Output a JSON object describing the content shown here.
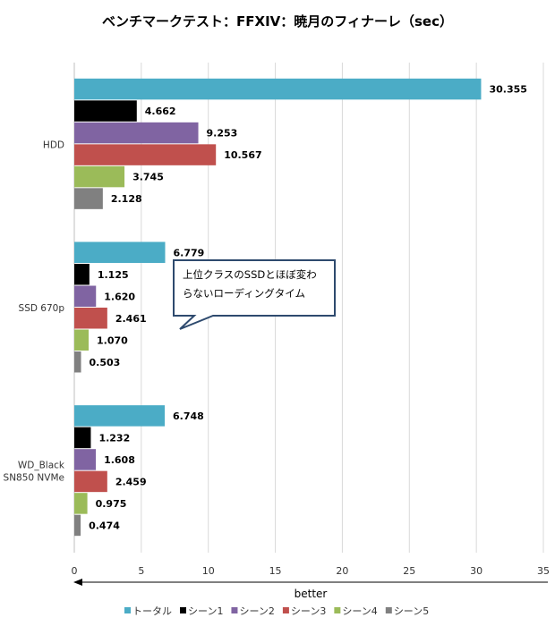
{
  "chart_data": {
    "type": "bar",
    "orientation": "horizontal",
    "title": "ベンチマークテスト：FFXIV：暁月のフィナーレ（sec）",
    "xlabel": "better",
    "xlim": [
      0,
      35
    ],
    "xticks": [
      0,
      5,
      10,
      15,
      20,
      25,
      30,
      35
    ],
    "grid": "vertical",
    "legend_position": "bottom",
    "categories": [
      "HDD",
      "SSD 670p",
      "WD_Black SN850 NVMe"
    ],
    "series": [
      {
        "name": "トータル",
        "color": "#4bacc6",
        "values": [
          30.355,
          6.779,
          6.748
        ]
      },
      {
        "name": "シーン1",
        "color": "#000000",
        "values": [
          4.662,
          1.125,
          1.232
        ]
      },
      {
        "name": "シーン2",
        "color": "#8064a2",
        "values": [
          9.253,
          1.62,
          1.608
        ]
      },
      {
        "name": "シーン3",
        "color": "#c0504d",
        "values": [
          10.567,
          2.461,
          2.459
        ]
      },
      {
        "name": "シーン4",
        "color": "#9bbb59",
        "values": [
          3.745,
          1.07,
          0.975
        ]
      },
      {
        "name": "シーン5",
        "color": "#808080",
        "values": [
          2.128,
          0.503,
          0.474
        ]
      }
    ],
    "value_labels": [
      [
        "30.355",
        "6.779",
        "6.748"
      ],
      [
        "4.662",
        "1.125",
        "1.232"
      ],
      [
        "9.253",
        "1.620",
        "1.608"
      ],
      [
        "10.567",
        "2.461",
        "2.459"
      ],
      [
        "3.745",
        "1.070",
        "0.975"
      ],
      [
        "2.128",
        "0.503",
        "0.474"
      ]
    ],
    "annotation": "上位クラスのSSDとほぼ変わらないローディングタイム"
  }
}
